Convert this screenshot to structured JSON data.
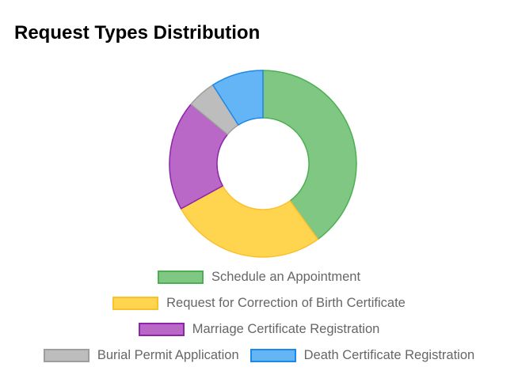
{
  "chart_data": {
    "type": "pie",
    "subtype": "doughnut",
    "title": "Request Types Distribution",
    "categories": [
      "Schedule an Appointment",
      "Request for Correction of Birth Certificate",
      "Marriage Certificate Registration",
      "Burial Permit Application",
      "Death Certificate Registration"
    ],
    "values": [
      40,
      27,
      19,
      5,
      9
    ],
    "colors": {
      "fill": [
        "#81c784",
        "#ffd54f",
        "#ba68c8",
        "#bdbdbd",
        "#64b5f6"
      ],
      "border": [
        "#4caf50",
        "#fbc02d",
        "#8e24aa",
        "#9e9e9e",
        "#1e88e5"
      ]
    },
    "legend_position": "bottom"
  }
}
